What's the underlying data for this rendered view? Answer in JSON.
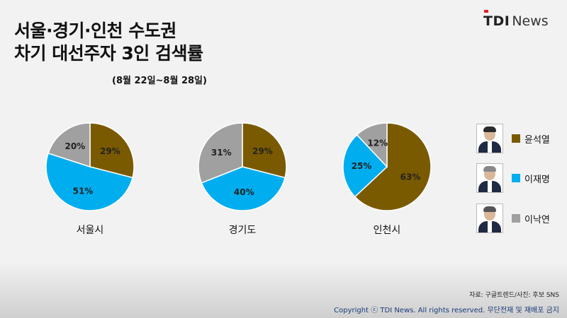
{
  "header": {
    "title_line1": "서울·경기·인천 수도권",
    "title_line2": "차기 대선주자 3인 검색률",
    "subtitle": "(8월 22일~8월 28일)"
  },
  "logo": {
    "tdi": "TDI",
    "news": "News"
  },
  "colors": {
    "yoon": "#7a5a00",
    "lee_jm": "#00aeef",
    "lee_ny": "#a0a0a0"
  },
  "chart_data": {
    "type": "pie",
    "series_order": [
      "윤석열",
      "이재명",
      "이낙연"
    ],
    "charts": [
      {
        "region": "서울시",
        "slices": [
          {
            "name": "윤석열",
            "value": 29,
            "label": "29%"
          },
          {
            "name": "이재명",
            "value": 51,
            "label": "51%"
          },
          {
            "name": "이낙연",
            "value": 20,
            "label": "20%"
          }
        ]
      },
      {
        "region": "경기도",
        "slices": [
          {
            "name": "윤석열",
            "value": 29,
            "label": "29%"
          },
          {
            "name": "이재명",
            "value": 40,
            "label": "40%"
          },
          {
            "name": "이낙연",
            "value": 31,
            "label": "31%"
          }
        ]
      },
      {
        "region": "인천시",
        "slices": [
          {
            "name": "윤석열",
            "value": 63,
            "label": "63%"
          },
          {
            "name": "이재명",
            "value": 25,
            "label": "25%"
          },
          {
            "name": "이낙연",
            "value": 12,
            "label": "12%"
          }
        ]
      }
    ],
    "legend_placement": "right"
  },
  "legend": [
    {
      "name": "윤석열",
      "color": "#7a5a00",
      "icon": "candidate-photo-icon"
    },
    {
      "name": "이재명",
      "color": "#00aeef",
      "icon": "candidate-photo-icon"
    },
    {
      "name": "이낙연",
      "color": "#a0a0a0",
      "icon": "candidate-photo-icon"
    }
  ],
  "footer": {
    "source": "자료: 구글트렌드/사진: 후보 SNS",
    "copyright": "Copyright ⓒ TDI News. All rights reserved. 무단전재 및 재배포 금지"
  }
}
